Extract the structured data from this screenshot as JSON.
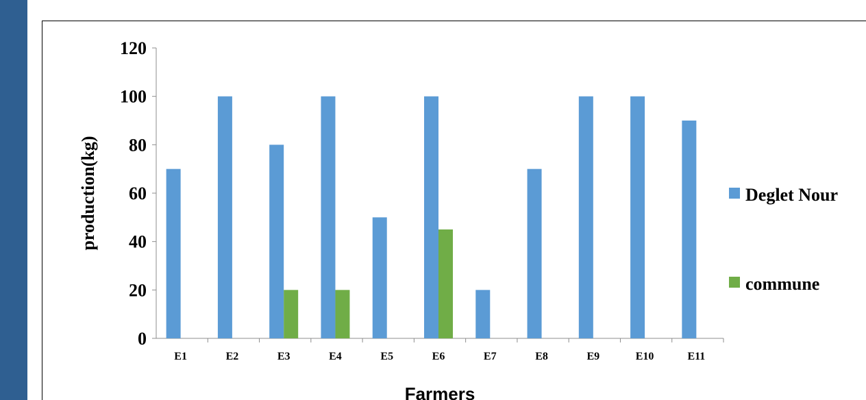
{
  "colors": {
    "left_strip": "#2f5f91",
    "series_1": "#5b9bd5",
    "series_2": "#70ad47",
    "axis": "#8c8c8c"
  },
  "chart_data": {
    "type": "bar",
    "title": "",
    "xlabel": "Farmers",
    "ylabel": "production(kg)",
    "ylim": [
      0,
      120
    ],
    "yticks": [
      0,
      20,
      40,
      60,
      80,
      100,
      120
    ],
    "grid": false,
    "legend_position": "right",
    "categories": [
      "E1",
      "E2",
      "E3",
      "E4",
      "E5",
      "E6",
      "E7",
      "E8",
      "E9",
      "E10",
      "E11"
    ],
    "series": [
      {
        "name": "Deglet Nour",
        "values": [
          70,
          100,
          80,
          100,
          50,
          100,
          20,
          70,
          100,
          100,
          90
        ]
      },
      {
        "name": "commune",
        "values": [
          0,
          0,
          20,
          20,
          0,
          45,
          0,
          0,
          0,
          0,
          0
        ]
      }
    ]
  }
}
